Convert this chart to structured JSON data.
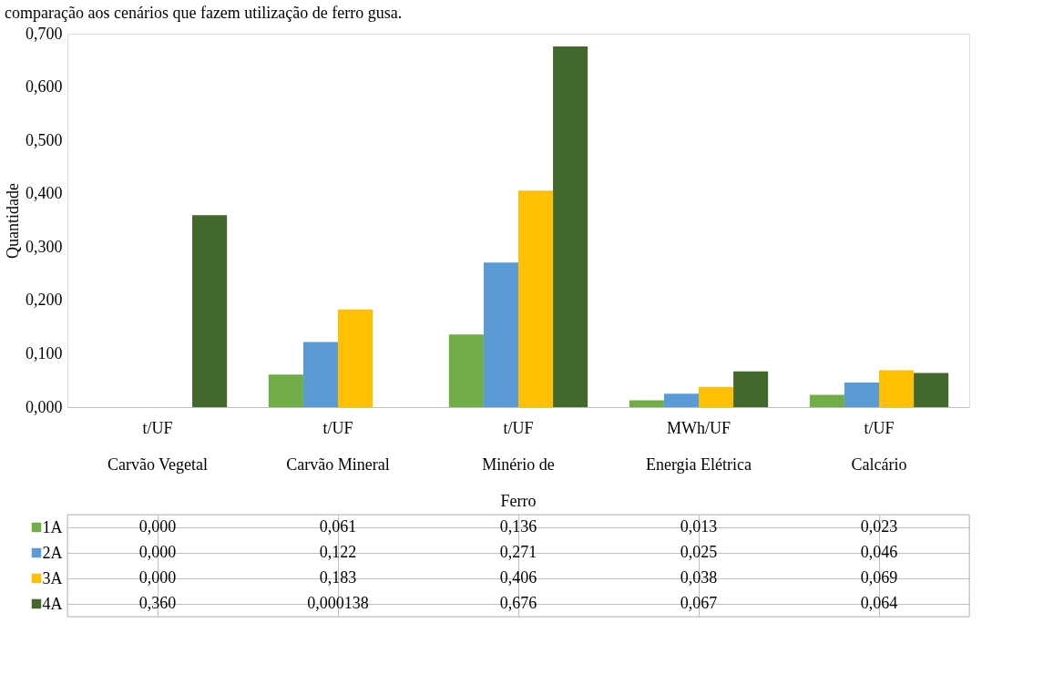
{
  "chart_data": {
    "type": "bar",
    "title": "comparação aos cenários que fazem utilização de ferro gusa.",
    "ylabel": "Quantidade",
    "categories": [
      "t/UF\nCarvão Vegetal",
      "t/UF\nCarvão Mineral",
      "t/UF\nMinério de\nFerro",
      "MWh/UF\nEnergia Elétrica",
      "t/UF\nCalcário"
    ],
    "series": [
      {
        "name": "1A",
        "color": "#70ad47",
        "values": [
          0.0,
          0.061,
          0.136,
          0.013,
          0.023
        ],
        "value_labels": [
          "0,000",
          "0,061",
          "0,136",
          "0,013",
          "0,023"
        ]
      },
      {
        "name": "2A",
        "color": "#5b9bd5",
        "values": [
          0.0,
          0.122,
          0.271,
          0.025,
          0.046
        ],
        "value_labels": [
          "0,000",
          "0,122",
          "0,271",
          "0,025",
          "0,046"
        ]
      },
      {
        "name": "3A",
        "color": "#ffc000",
        "values": [
          0.0,
          0.183,
          0.406,
          0.038,
          0.069
        ],
        "value_labels": [
          "0,000",
          "0,183",
          "0,406",
          "0,038",
          "0,069"
        ]
      },
      {
        "name": "4A",
        "color": "#43682b",
        "values": [
          0.36,
          0.000138,
          0.676,
          0.067,
          0.064
        ],
        "value_labels": [
          "0,360",
          "0,000138",
          "0,676",
          "0,067",
          "0,064"
        ]
      }
    ],
    "ylim": [
      0,
      0.7
    ],
    "yticks": [
      {
        "value": 0,
        "label": "0,000"
      },
      {
        "value": 0.1,
        "label": "0,100"
      },
      {
        "value": 0.2,
        "label": "0,200"
      },
      {
        "value": 0.3,
        "label": "0,300"
      },
      {
        "value": 0.4,
        "label": "0,400"
      },
      {
        "value": 0.5,
        "label": "0,500"
      },
      {
        "value": 0.6,
        "label": "0,600"
      },
      {
        "value": 0.7,
        "label": "0,700"
      }
    ],
    "grid": false,
    "legend": "bottom"
  }
}
